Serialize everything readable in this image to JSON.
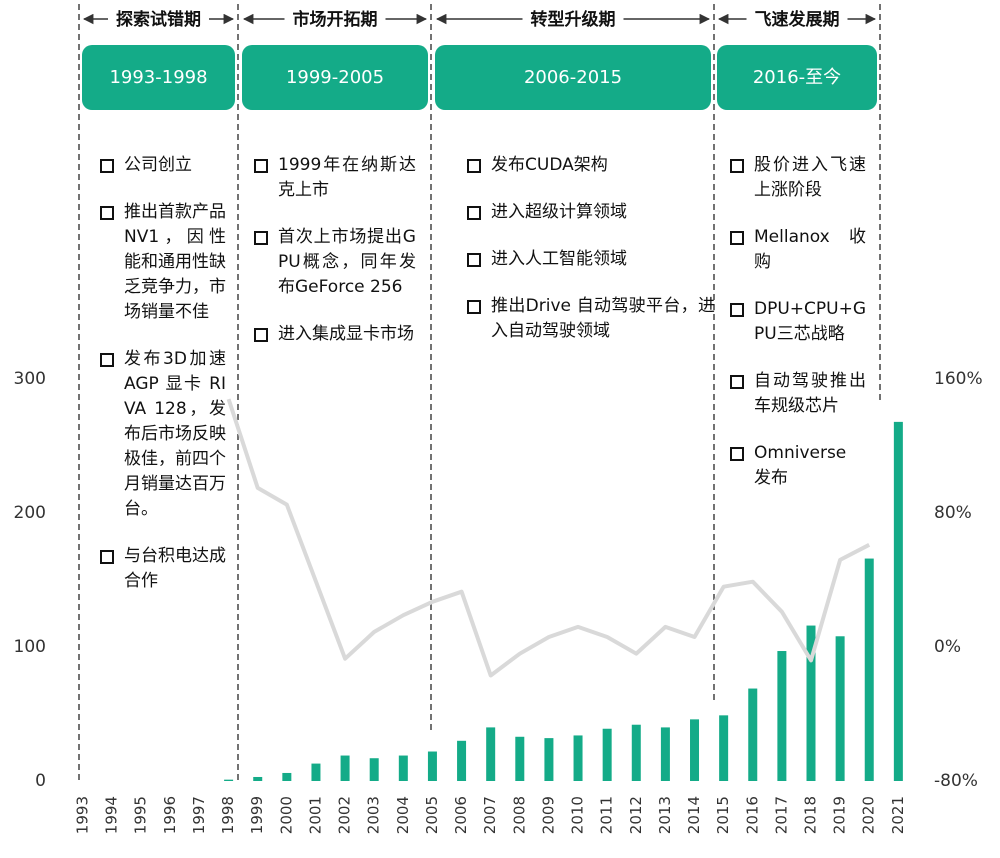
{
  "chart_data": {
    "type": "bar",
    "categories": [
      "1993",
      "1994",
      "1995",
      "1996",
      "1997",
      "1998",
      "1999",
      "2000",
      "2001",
      "2002",
      "2003",
      "2004",
      "2005",
      "2006",
      "2007",
      "2008",
      "2009",
      "2010",
      "2011",
      "2012",
      "2013",
      "2014",
      "2015",
      "2016",
      "2017",
      "2018",
      "2019",
      "2020",
      "2021"
    ],
    "series": [
      {
        "type": "bar",
        "color": "#14ab88",
        "values": [
          0,
          0,
          0,
          0,
          0,
          1,
          3,
          6,
          13,
          19,
          17,
          19,
          22,
          30,
          40,
          33,
          32,
          34,
          39,
          42,
          40,
          46,
          49,
          69,
          97,
          116,
          108,
          166,
          268
        ]
      },
      {
        "type": "line",
        "axis": "y2",
        "color": "#d9d9d9",
        "values": [
          null,
          null,
          null,
          null,
          null,
          148,
          95,
          85,
          39,
          -7,
          9,
          19,
          27,
          33,
          -17,
          -4,
          6,
          12,
          6,
          -4,
          12,
          6,
          36,
          39,
          21,
          -8,
          52,
          61,
          null
        ]
      }
    ],
    "ylim": [
      0,
      300
    ],
    "yticks": [
      0,
      100,
      200,
      300
    ],
    "y2lim": [
      -80,
      160
    ],
    "y2ticks": [
      {
        "value": -80,
        "label": "-80%"
      },
      {
        "value": 0,
        "label": "0%"
      },
      {
        "value": 80,
        "label": "80%"
      },
      {
        "value": 160,
        "label": "160%"
      }
    ],
    "grid": false,
    "phases": [
      {
        "title": "探索试错期",
        "period": "1993-1998",
        "notes": [
          "公司创立",
          "推出首款产品NV1，因性能和通用性缺乏竞争力，市场销量不佳",
          "发布3D加速 AGP 显卡 RIVA 128，发布后市场反映极佳，前四个月销量达百万台。",
          "与台积电达成合作"
        ]
      },
      {
        "title": "市场开拓期",
        "period": "1999-2005",
        "notes": [
          "1999年在纳斯达克上市",
          "首次上市场提出GPU概念，同年发布GeForce 256",
          "进入集成显卡市场"
        ]
      },
      {
        "title": "转型升级期",
        "period": "2006-2015",
        "notes": [
          "发布CUDA架构",
          "进入超级计算领域",
          "进入人工智能领域",
          "推出Drive 自动驾驶平台，进入自动驾驶领域"
        ]
      },
      {
        "title": "飞速发展期",
        "period": "2016-至今",
        "notes": [
          "股价进入飞速上涨阶段",
          "Mellanox 收购",
          "DPU+CPU+GPU三芯战略",
          "自动驾驶推出车规级芯片",
          "Omniverse 发布"
        ]
      }
    ]
  }
}
